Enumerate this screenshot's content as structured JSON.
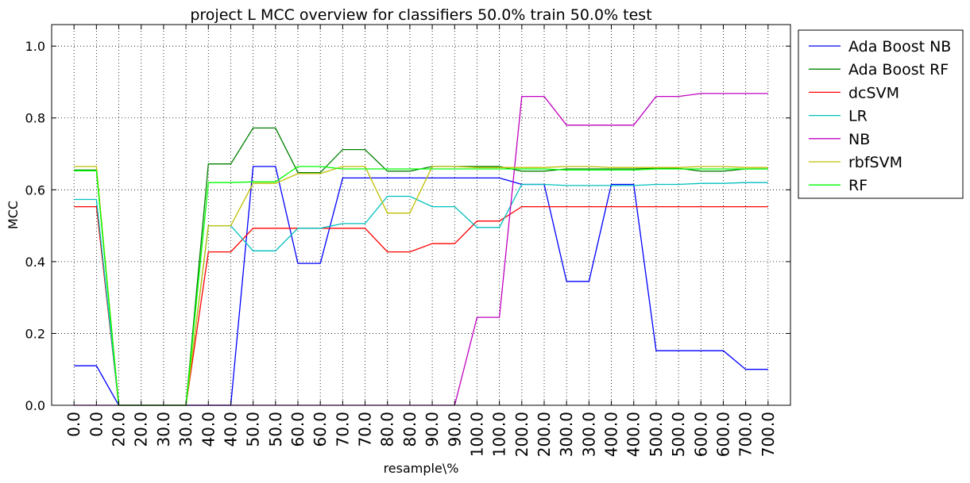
{
  "chart_data": {
    "type": "line",
    "title": "project L MCC overview for classifiers 50.0% train 50.0% test",
    "xlabel": "resample\\%",
    "ylabel": "MCC",
    "categories": [
      "0.0",
      "0.0",
      "20.0",
      "20.0",
      "30.0",
      "30.0",
      "40.0",
      "40.0",
      "50.0",
      "50.0",
      "60.0",
      "60.0",
      "70.0",
      "70.0",
      "80.0",
      "80.0",
      "90.0",
      "90.0",
      "100.0",
      "100.0",
      "200.0",
      "200.0",
      "300.0",
      "300.0",
      "400.0",
      "400.0",
      "500.0",
      "500.0",
      "600.0",
      "600.0",
      "700.0",
      "700.0"
    ],
    "ylim": [
      0,
      1.06
    ],
    "yticks": [
      "0.0",
      "0.2",
      "0.4",
      "0.6",
      "0.8",
      "1.0"
    ],
    "grid": true,
    "legend_position": "outside-right",
    "series": [
      {
        "name": "Ada Boost NB",
        "color": "#0000ff",
        "values": [
          0.11,
          0.11,
          0,
          0,
          0,
          0,
          0,
          0,
          0.665,
          0.665,
          0.395,
          0.395,
          0.633,
          0.633,
          0.633,
          0.633,
          0.633,
          0.633,
          0.633,
          0.633,
          0.615,
          0.615,
          0.345,
          0.345,
          0.615,
          0.615,
          0.152,
          0.152,
          0.152,
          0.152,
          0.1,
          0.1
        ]
      },
      {
        "name": "Ada Boost RF",
        "color": "#008000",
        "values": [
          0.655,
          0.655,
          0,
          0,
          0,
          0,
          0.672,
          0.672,
          0.772,
          0.772,
          0.648,
          0.648,
          0.712,
          0.712,
          0.652,
          0.652,
          0.665,
          0.665,
          0.665,
          0.665,
          0.652,
          0.652,
          0.658,
          0.658,
          0.658,
          0.658,
          0.66,
          0.66,
          0.652,
          0.652,
          0.658,
          0.658
        ]
      },
      {
        "name": "dcSVM",
        "color": "#ff0000",
        "values": [
          0.553,
          0.553,
          0,
          0,
          0,
          0,
          0.427,
          0.427,
          0.493,
          0.493,
          0.493,
          0.493,
          0.493,
          0.493,
          0.427,
          0.427,
          0.45,
          0.45,
          0.513,
          0.513,
          0.553,
          0.553,
          0.553,
          0.553,
          0.553,
          0.553,
          0.553,
          0.553,
          0.553,
          0.553,
          0.553,
          0.553
        ]
      },
      {
        "name": "LR",
        "color": "#00bfbf",
        "values": [
          0.573,
          0.573,
          0,
          0,
          0,
          0,
          0.5,
          0.5,
          0.43,
          0.43,
          0.493,
          0.493,
          0.506,
          0.506,
          0.582,
          0.582,
          0.553,
          0.553,
          0.495,
          0.495,
          0.615,
          0.615,
          0.612,
          0.612,
          0.612,
          0.612,
          0.615,
          0.615,
          0.618,
          0.618,
          0.62,
          0.62
        ]
      },
      {
        "name": "NB",
        "color": "#bf00bf",
        "values": [
          0,
          0,
          0,
          0,
          0,
          0,
          0,
          0,
          0,
          0,
          0,
          0,
          0,
          0,
          0,
          0,
          0,
          0,
          0.245,
          0.245,
          0.86,
          0.86,
          0.78,
          0.78,
          0.78,
          0.78,
          0.86,
          0.86,
          0.868,
          0.868,
          0.868,
          0.868
        ]
      },
      {
        "name": "rbfSVM",
        "color": "#bfbf00",
        "values": [
          0.665,
          0.665,
          0,
          0,
          0,
          0,
          0.5,
          0.5,
          0.618,
          0.618,
          0.645,
          0.645,
          0.665,
          0.665,
          0.535,
          0.535,
          0.665,
          0.665,
          0.662,
          0.662,
          0.662,
          0.662,
          0.665,
          0.665,
          0.662,
          0.662,
          0.662,
          0.662,
          0.665,
          0.665,
          0.662,
          0.662
        ]
      },
      {
        "name": "RF",
        "color": "#00ff00",
        "values": [
          0.653,
          0.653,
          0,
          0,
          0,
          0,
          0.62,
          0.62,
          0.622,
          0.622,
          0.665,
          0.665,
          0.658,
          0.658,
          0.658,
          0.658,
          0.658,
          0.658,
          0.658,
          0.658,
          0.658,
          0.658,
          0.655,
          0.655,
          0.655,
          0.655,
          0.658,
          0.658,
          0.658,
          0.658,
          0.658,
          0.658
        ]
      }
    ]
  }
}
